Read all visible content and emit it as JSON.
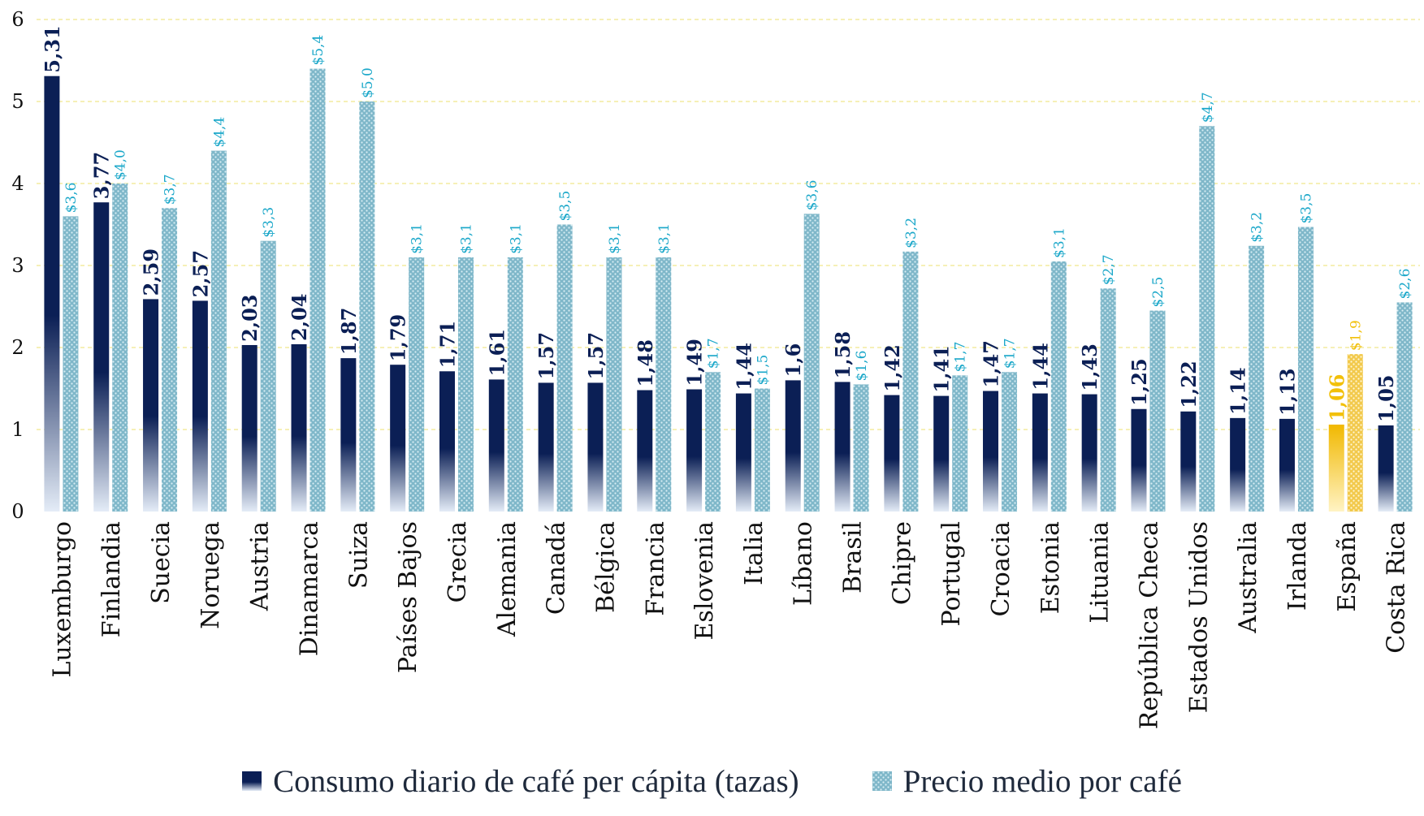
{
  "colors": {
    "consumo_top": "#0b1f55",
    "consumo_bottom": "#e4ecf7",
    "precio_fill": "#7fb7c9",
    "precio_dot": "#d8eef4",
    "precio_label": "#1aa7c9",
    "espana_top": "#f1b800",
    "espana_bottom": "#fff3c4",
    "espana_precio": "#f2c94c",
    "espana_label": "#f2c00a",
    "grid": "#f0e68c",
    "axis_text": "#111111",
    "consumo_label": "#0b1f55"
  },
  "legend": {
    "consumo": "Consumo diario de café per cápita (tazas)",
    "precio": "Precio medio por café"
  },
  "chart_data": {
    "type": "bar",
    "title": "",
    "xlabel": "",
    "ylabel": "",
    "ylim": [
      0,
      6
    ],
    "yticks": [
      "0",
      "1",
      "2",
      "3",
      "4",
      "5",
      "6"
    ],
    "grid": true,
    "legend_position": "bottom",
    "highlight": "España",
    "categories": [
      "Luxemburgo",
      "Finlandia",
      "Suecia",
      "Noruega",
      "Austria",
      "Dinamarca",
      "Suiza",
      "Países Bajos",
      "Grecia",
      "Alemania",
      "Canadá",
      "Bélgica",
      "Francia",
      "Eslovenia",
      "Italia",
      "Líbano",
      "Brasil",
      "Chipre",
      "Portugal",
      "Croacia",
      "Estonia",
      "Lituania",
      "República Checa",
      "Estados Unidos",
      "Australia",
      "Irlanda",
      "España",
      "Costa Rica"
    ],
    "series": [
      {
        "name": "Consumo diario de café per cápita (tazas)",
        "values": [
          5.31,
          3.77,
          2.59,
          2.57,
          2.03,
          2.04,
          1.87,
          1.79,
          1.71,
          1.61,
          1.57,
          1.57,
          1.48,
          1.49,
          1.44,
          1.6,
          1.58,
          1.42,
          1.41,
          1.47,
          1.44,
          1.43,
          1.25,
          1.22,
          1.14,
          1.13,
          1.06,
          1.05
        ],
        "labels": [
          "5,31",
          "3,77",
          "2,59",
          "2,57",
          "2,03",
          "2,04",
          "1,87",
          "1,79",
          "1,71",
          "1,61",
          "1,57",
          "1,57",
          "1,48",
          "1,49",
          "1,44",
          "1,6",
          "1,58",
          "1,42",
          "1,41",
          "1,47",
          "1,44",
          "1,43",
          "1,25",
          "1,22",
          "1,14",
          "1,13",
          "1,06",
          "1,05"
        ]
      },
      {
        "name": "Precio medio por café",
        "values": [
          3.6,
          4.0,
          3.7,
          4.4,
          3.3,
          5.4,
          5.0,
          3.1,
          3.1,
          3.1,
          3.5,
          3.1,
          3.1,
          1.7,
          1.5,
          3.63,
          1.55,
          3.17,
          1.66,
          1.7,
          3.05,
          2.72,
          2.45,
          4.7,
          3.24,
          3.47,
          1.92,
          2.55
        ],
        "labels": [
          "$3,6",
          "$4,0",
          "$3,7",
          "$4,4",
          "$3,3",
          "$5,4",
          "$5,0",
          "$3,1",
          "$3,1",
          "$3,1",
          "$3,5",
          "$3,1",
          "$3,1",
          "$1,7",
          "$1,5",
          "$3,6",
          "$1,6",
          "$3,2",
          "$1,7",
          "$1,7",
          "$3,1",
          "$2,7",
          "$2,5",
          "$4,7",
          "$3,2",
          "$3,5",
          "$1,9",
          "$2,6"
        ]
      }
    ]
  }
}
